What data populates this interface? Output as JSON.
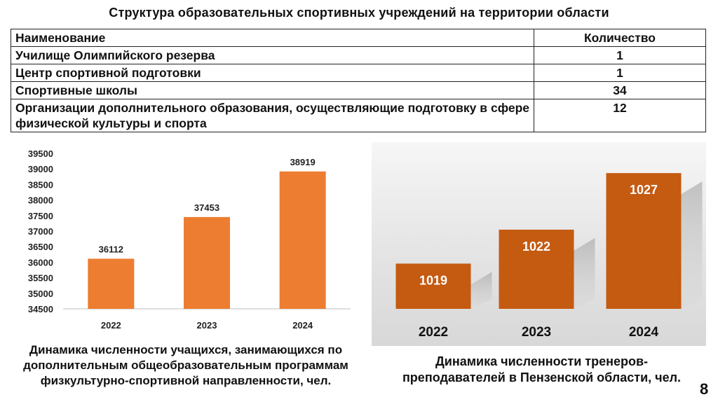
{
  "title": "Структура образовательных спортивных учреждений на территории области",
  "table": {
    "header": {
      "name": "Наименование",
      "count": "Количество"
    },
    "rows": [
      {
        "name": "Училище Олимпийского резерва",
        "count": "1"
      },
      {
        "name": "Центр спортивной подготовки",
        "count": "1"
      },
      {
        "name": "Спортивные школы",
        "count": "34"
      },
      {
        "name": "Организации дополнительного образования, осуществляющие подготовку в сфере физической культуры и спорта",
        "count": "12"
      }
    ]
  },
  "chart_data": [
    {
      "type": "bar",
      "categories": [
        "2022",
        "2023",
        "2024"
      ],
      "values": [
        36112,
        37453,
        38919
      ],
      "ylim": [
        34500,
        39500
      ],
      "yticks": [
        34500,
        35000,
        35500,
        36000,
        36500,
        37000,
        37500,
        38000,
        38500,
        39000,
        39500
      ],
      "grid": false,
      "color": "#ed7d31",
      "caption": "Динамика численности учащихся, занимающихся по дополнительным общеобразовательным программам физкультурно-спортивной направленности, чел."
    },
    {
      "type": "bar",
      "categories": [
        "2022",
        "2023",
        "2024"
      ],
      "values": [
        1019,
        1022,
        1027
      ],
      "ylim": [
        1015,
        1028
      ],
      "color": "#c55a11",
      "caption": "Динамика численности тренеров-преподавателей в Пензенской области, чел."
    }
  ],
  "page_number": "8"
}
